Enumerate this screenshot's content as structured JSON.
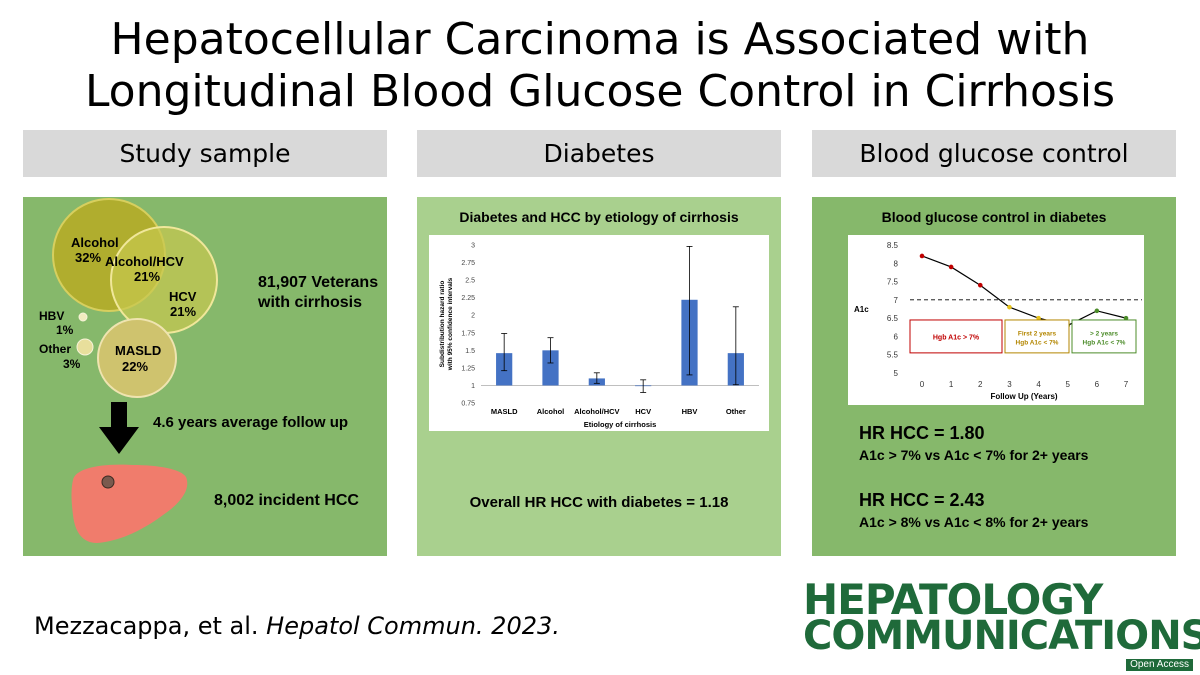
{
  "title": {
    "line1": "Hepatocellular Carcinoma is Associated with",
    "line2": "Longitudinal Blood Glucose Control in Cirrhosis"
  },
  "headers": [
    "Study sample",
    "Diabetes",
    "Blood glucose control"
  ],
  "study": {
    "circles": [
      {
        "label": "Alcohol",
        "pct": "32%"
      },
      {
        "label": "Alcohol/HCV",
        "pct": "21%"
      },
      {
        "label": "HCV",
        "pct": "21%"
      },
      {
        "label": "HBV",
        "pct": "1%"
      },
      {
        "label": "Other",
        "pct": "3%"
      },
      {
        "label": "MASLD",
        "pct": "22%"
      }
    ],
    "veterans_line1": "81,907 Veterans",
    "veterans_line2": "with cirrhosis",
    "followup": "4.6 years average follow up",
    "incident": "8,002 incident HCC"
  },
  "diabetes": {
    "chart_title": "Diabetes and HCC by etiology of cirrhosis",
    "overall": "Overall HR HCC with diabetes = 1.18"
  },
  "glucose": {
    "chart_title": "Blood glucose control in diabetes",
    "hr1": "HR HCC = 1.80",
    "hr1_sub": "A1c > 7% vs A1c < 7% for 2+ years",
    "hr2": "HR HCC = 2.43",
    "hr2_sub": "A1c > 8% vs A1c < 8% for 2+ years"
  },
  "citation": {
    "authors": "Mezzacappa, et al. ",
    "journal": "Hepatol Commun. 2023."
  },
  "journal_logo": {
    "line1": "HEPATOLOGY",
    "line2": "COMMUNICATIONS",
    "badge": "Open Access"
  },
  "colors": {
    "panel_green": "#86b86b",
    "panel_light_green": "#a9d08e",
    "header_gray": "#d9d9d9",
    "bar_blue": "#4472c4",
    "liver": "#f07c6c",
    "brand_green": "#1f6a3a"
  },
  "chart_data": [
    {
      "type": "bar",
      "title": "Diabetes and HCC by etiology of cirrhosis",
      "xlabel": "Etiology of cirrhosis",
      "ylabel": "Subdistribution hazard ratio with 95% confidence intervals",
      "ylim": [
        0.75,
        3
      ],
      "yticks": [
        "0.75",
        "1",
        "1.25",
        "1.5",
        "1.75",
        "2",
        "2.25",
        "2.5",
        "2.75",
        "3"
      ],
      "categories": [
        "MASLD",
        "Alcohol",
        "Alcohol/HCV",
        "HCV",
        "HBV",
        "Other"
      ],
      "values": [
        1.46,
        1.5,
        1.1,
        0.99,
        2.22,
        1.46
      ],
      "ci_low": [
        1.21,
        1.32,
        1.03,
        0.9,
        1.15,
        1.01
      ],
      "ci_high": [
        1.74,
        1.68,
        1.18,
        1.08,
        2.98,
        2.12
      ],
      "grid": false
    },
    {
      "type": "line",
      "title": "Blood glucose control in diabetes",
      "xlabel": "Follow Up (Years)",
      "ylabel": "A1c",
      "x": [
        0,
        1,
        2,
        3,
        4,
        5,
        6,
        7
      ],
      "y": [
        8.2,
        7.9,
        7.4,
        6.8,
        6.5,
        6.3,
        6.7,
        6.5
      ],
      "point_colors": [
        "#c00000",
        "#c00000",
        "#c00000",
        "#e6c21a",
        "#e6c21a",
        "#4c8c2a",
        "#4c8c2a",
        "#4c8c2a"
      ],
      "threshold": 7,
      "ylim": [
        5,
        8.5
      ],
      "yticks": [
        "5",
        "5.5",
        "6",
        "6.5",
        "7",
        "7.5",
        "8",
        "8.5"
      ],
      "xticks": [
        "0",
        "1",
        "2",
        "3",
        "4",
        "5",
        "6",
        "7"
      ],
      "annotations": [
        {
          "text": "Hgb A1c > 7%",
          "color": "#c00000"
        },
        {
          "line1": "First 2 years",
          "line2": "Hgb A1c < 7%",
          "color": "#b38600"
        },
        {
          "line1": "> 2 years",
          "line2": "Hgb A1c < 7%",
          "color": "#4c8c2a"
        }
      ],
      "grid": false
    }
  ]
}
